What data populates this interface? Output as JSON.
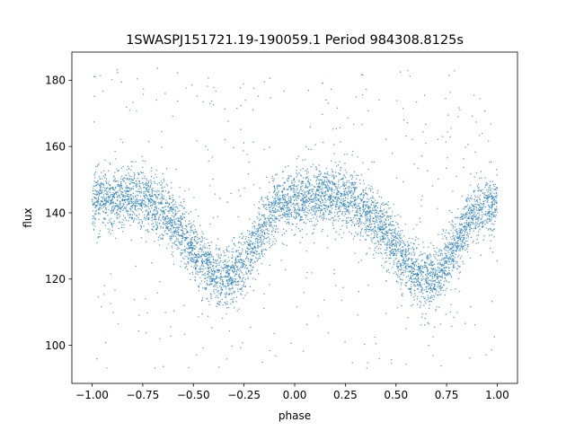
{
  "chart_data": {
    "type": "scatter",
    "title": "1SWASPJ151721.19-190059.1 Period 984308.8125s",
    "xlabel": "phase",
    "ylabel": "flux",
    "xlim": [
      -1.1,
      1.1
    ],
    "ylim": [
      88.5,
      188.5
    ],
    "x_ticks": [
      -1.0,
      -0.75,
      -0.5,
      -0.25,
      0.0,
      0.25,
      0.5,
      0.75,
      1.0
    ],
    "x_tick_labels": [
      "−1.00",
      "−0.75",
      "−0.50",
      "−0.25",
      "0.00",
      "0.25",
      "0.50",
      "0.75",
      "1.00"
    ],
    "y_ticks": [
      100,
      120,
      140,
      160,
      180
    ],
    "y_tick_labels": [
      "100",
      "120",
      "140",
      "160",
      "180"
    ],
    "grid": false,
    "marker_color": "#1f77b4",
    "series": [
      {
        "x": [
          -1.0,
          -0.95,
          -0.9,
          -0.85,
          -0.8,
          -0.75,
          -0.7,
          -0.65,
          -0.6,
          -0.55,
          -0.5,
          -0.45,
          -0.4,
          -0.35,
          -0.3,
          -0.25,
          -0.2,
          -0.15,
          -0.1,
          -0.05,
          0.0,
          0.05,
          0.1,
          0.15,
          0.2,
          0.25,
          0.3,
          0.35,
          0.4,
          0.45,
          0.5,
          0.55,
          0.6,
          0.65,
          0.7,
          0.75,
          0.8,
          0.85,
          0.9,
          0.95,
          1.0
        ],
        "y_center": [
          143,
          144,
          145,
          145,
          145,
          144,
          143,
          141,
          138,
          134,
          129,
          125,
          121,
          120,
          121,
          125,
          131,
          137,
          141,
          143,
          143,
          144,
          145,
          145,
          145,
          144,
          143,
          141,
          138,
          134,
          129,
          125,
          121,
          120,
          121,
          125,
          131,
          137,
          141,
          142,
          143
        ],
        "y_spread": 4.5
      }
    ]
  }
}
